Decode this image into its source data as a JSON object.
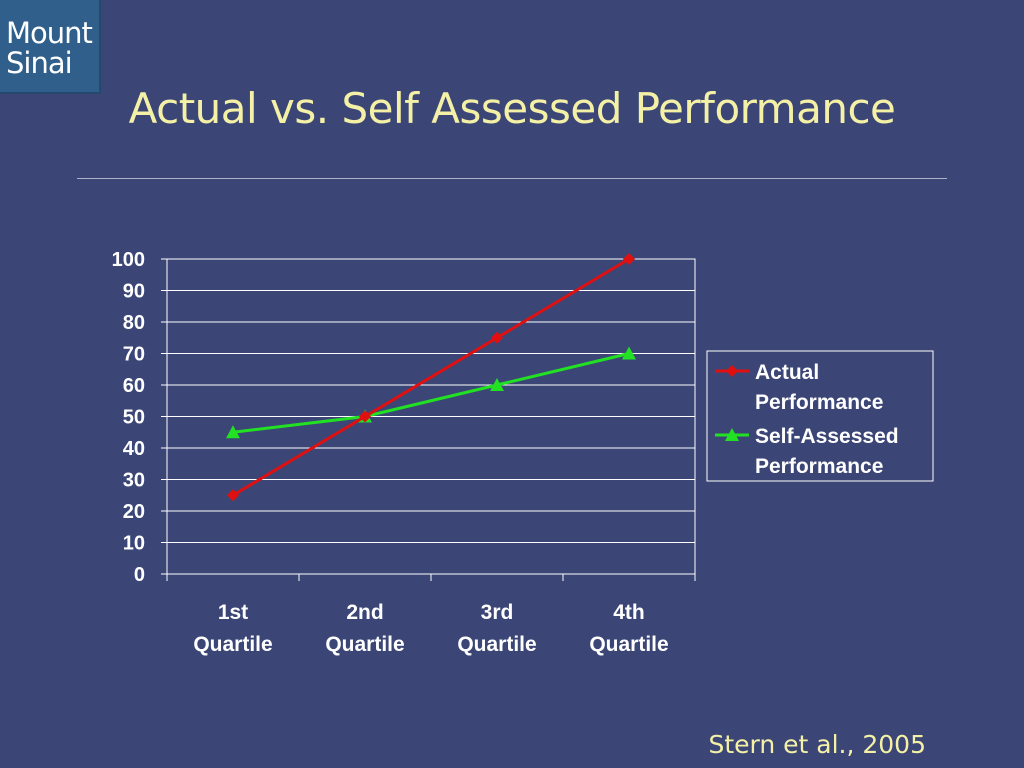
{
  "logo": {
    "line1": "Mount",
    "line2": "Sinai"
  },
  "slide": {
    "title": "Actual vs. Self Assessed Performance",
    "citation": "Stern et al., 2005"
  },
  "colors": {
    "background": "#3b4677",
    "title": "#f4f1a6",
    "actual": "#e01010",
    "self_assessed": "#22e022",
    "axis_text": "#ffffff"
  },
  "chart_data": {
    "type": "line",
    "title": "",
    "xlabel": "",
    "ylabel": "",
    "categories": [
      [
        "1st",
        "Quartile"
      ],
      [
        "2nd",
        "Quartile"
      ],
      [
        "3rd",
        "Quartile"
      ],
      [
        "4th",
        "Quartile"
      ]
    ],
    "ylim": [
      0,
      100
    ],
    "yticks": [
      0,
      10,
      20,
      30,
      40,
      50,
      60,
      70,
      80,
      90,
      100
    ],
    "grid": true,
    "legend_position": "right",
    "series": [
      {
        "name": [
          "Actual",
          "Performance"
        ],
        "marker": "diamond",
        "color": "#e01010",
        "values": [
          25,
          50,
          75,
          100
        ]
      },
      {
        "name": [
          "Self-Assessed",
          "Performance"
        ],
        "marker": "triangle",
        "color": "#22e022",
        "values": [
          45,
          50,
          60,
          70
        ]
      }
    ]
  }
}
